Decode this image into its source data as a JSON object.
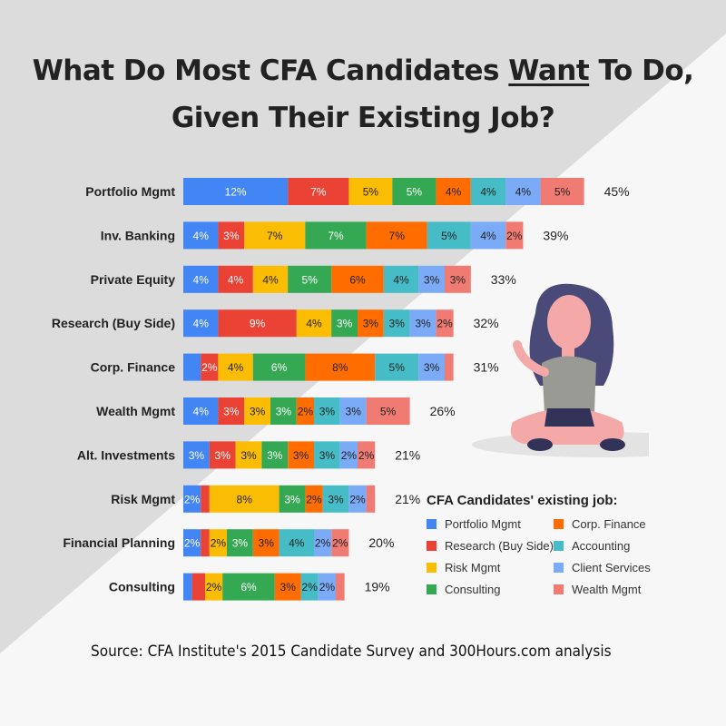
{
  "title": {
    "line1_pre": "What Do Most CFA Candidates ",
    "line1_underlined": "Want",
    "line1_post": " To Do,",
    "line2": "Given Their Existing Job?"
  },
  "source": "Source: CFA Institute's 2015 Candidate Survey and 300Hours.com analysis",
  "chart_data": {
    "type": "bar",
    "orientation": "horizontal",
    "stacked": true,
    "title": "What Do Most CFA Candidates Want To Do, Given Their Existing Job?",
    "legend_title": "CFA Candidates' existing job:",
    "legend_position": "bottom-right",
    "categories": [
      "Portfolio Mgmt",
      "Inv. Banking",
      "Private Equity",
      "Research (Buy Side)",
      "Corp. Finance",
      "Wealth Mgmt",
      "Alt. Investments",
      "Risk Mgmt",
      "Financial Planning",
      "Consulting"
    ],
    "totals": [
      "45%",
      "39%",
      "33%",
      "32%",
      "31%",
      "26%",
      "21%",
      "21%",
      "20%",
      "19%"
    ],
    "series": [
      {
        "name": "Portfolio Mgmt",
        "color": "#4285F4",
        "values": [
          12,
          4,
          4,
          4,
          2,
          4,
          3,
          2,
          2,
          1
        ],
        "labels": [
          "12%",
          "4%",
          "4%",
          "4%",
          "",
          "4%",
          "3%",
          "2%",
          "2%",
          ""
        ]
      },
      {
        "name": "Research (Buy Side)",
        "color": "#EA4335",
        "values": [
          7,
          3,
          4,
          9,
          2,
          3,
          3,
          1,
          1,
          1.5
        ],
        "labels": [
          "7%",
          "3%",
          "4%",
          "9%",
          "2%",
          "3%",
          "3%",
          "",
          "",
          ""
        ]
      },
      {
        "name": "Risk Mgmt",
        "color": "#FBBC04",
        "values": [
          5,
          7,
          4,
          4,
          4,
          3,
          3,
          8,
          2,
          2
        ],
        "labels": [
          "5%",
          "7%",
          "4%",
          "4%",
          "4%",
          "3%",
          "3%",
          "8%",
          "2%",
          "2%"
        ]
      },
      {
        "name": "Consulting",
        "color": "#34A853",
        "values": [
          5,
          7,
          5,
          3,
          6,
          3,
          3,
          3,
          3,
          6
        ],
        "labels": [
          "5%",
          "7%",
          "5%",
          "3%",
          "6%",
          "3%",
          "3%",
          "3%",
          "3%",
          "6%"
        ]
      },
      {
        "name": "Corp. Finance",
        "color": "#FF6D01",
        "values": [
          4,
          7,
          6,
          3,
          8,
          2,
          3,
          2,
          3,
          3
        ],
        "labels": [
          "4%",
          "7%",
          "6%",
          "3%",
          "8%",
          "2%",
          "3%",
          "2%",
          "3%",
          "3%"
        ]
      },
      {
        "name": "Accounting",
        "color": "#46BDC6",
        "values": [
          4,
          5,
          4,
          3,
          5,
          3,
          3,
          3,
          4,
          2
        ],
        "labels": [
          "4%",
          "5%",
          "4%",
          "3%",
          "5%",
          "3%",
          "3%",
          "3%",
          "4%",
          "2%"
        ]
      },
      {
        "name": "Client Services",
        "color": "#7BAAF7",
        "values": [
          4,
          4,
          3,
          3,
          3,
          3,
          2,
          2,
          2,
          2
        ],
        "labels": [
          "4%",
          "4%",
          "3%",
          "3%",
          "3%",
          "3%",
          "2%",
          "2%",
          "2%",
          "2%"
        ]
      },
      {
        "name": "Wealth Mgmt",
        "color": "#F07B72",
        "values": [
          5,
          2,
          3,
          2,
          1,
          5,
          2,
          1,
          2,
          1
        ],
        "labels": [
          "5%",
          "2%",
          "3%",
          "2%",
          "",
          "5%",
          "2%",
          "",
          "2%",
          ""
        ]
      }
    ],
    "dark_label_series": [
      "Risk Mgmt",
      "Corp. Finance",
      "Accounting",
      "Client Services",
      "Wealth Mgmt"
    ]
  }
}
